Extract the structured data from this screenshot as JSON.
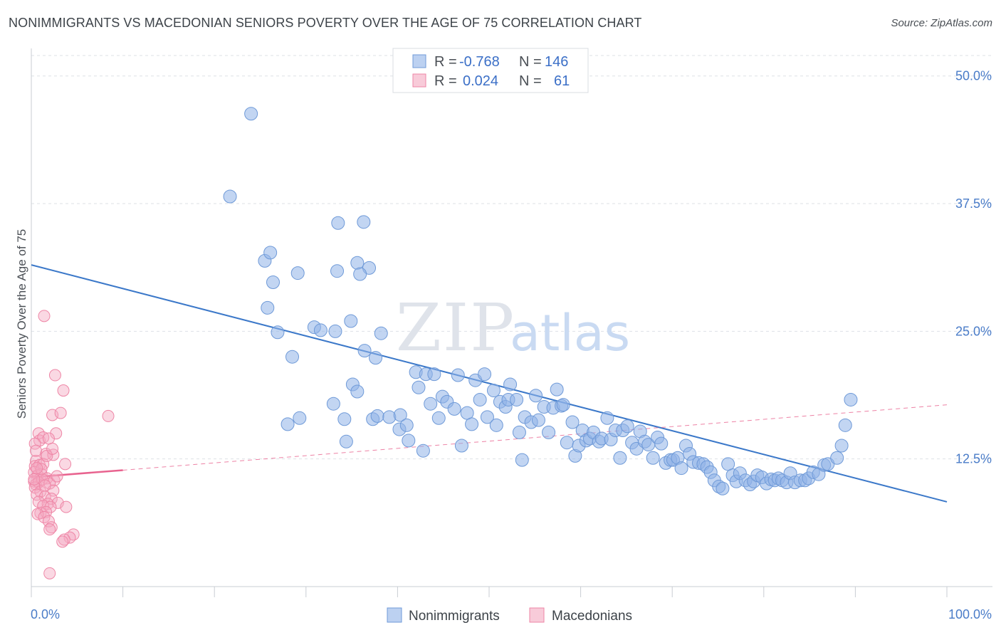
{
  "header": {
    "title": "NONIMMIGRANTS VS MACEDONIAN SENIORS POVERTY OVER THE AGE OF 75 CORRELATION CHART",
    "source": "Source: ZipAtlas.com"
  },
  "watermark": {
    "zip": "ZIP",
    "atlas": "atlas"
  },
  "legend": {
    "r_label": "R =",
    "n_label": "N =",
    "rows": [
      {
        "r": "-0.768",
        "n": "146",
        "color": "#8fb3e8"
      },
      {
        "r": "0.024",
        "n": "61",
        "color": "#f4a9c0"
      }
    ]
  },
  "bottom_legend": [
    "Nonimmigrants",
    "Macedonians"
  ],
  "chart_data": {
    "type": "scatter",
    "title": "NONIMMIGRANTS VS MACEDONIAN SENIORS POVERTY OVER THE AGE OF 75 CORRELATION CHART",
    "ylabel": "Seniors Poverty Over the Age of 75",
    "xlabel": "",
    "xlim": [
      0,
      100
    ],
    "ylim": [
      0,
      52
    ],
    "x_ticks": [
      "0.0%",
      "100.0%"
    ],
    "y_ticks": [
      {
        "value": 12.5,
        "label": "12.5%"
      },
      {
        "value": 25.0,
        "label": "25.0%"
      },
      {
        "value": 37.5,
        "label": "37.5%"
      },
      {
        "value": 50.0,
        "label": "50.0%"
      }
    ],
    "grid": true,
    "series": [
      {
        "name": "Nonimmigrants",
        "color": "#8fb3e8",
        "stroke": "#6f9ad8",
        "trend": {
          "x": [
            0,
            100
          ],
          "y": [
            31.5,
            8.3
          ],
          "color": "#3b78c9",
          "style": "solid"
        },
        "points": [
          [
            24,
            46.3
          ],
          [
            21.7,
            38.2
          ],
          [
            25.5,
            31.9
          ],
          [
            26.1,
            32.7
          ],
          [
            26.4,
            29.8
          ],
          [
            29.1,
            30.7
          ],
          [
            25.8,
            27.3
          ],
          [
            33.5,
            35.6
          ],
          [
            36.3,
            35.7
          ],
          [
            35.6,
            31.7
          ],
          [
            33.4,
            30.9
          ],
          [
            36.9,
            31.2
          ],
          [
            35.9,
            30.6
          ],
          [
            26.9,
            24.9
          ],
          [
            28.5,
            22.5
          ],
          [
            30.9,
            25.4
          ],
          [
            31.6,
            25.1
          ],
          [
            33.2,
            25.0
          ],
          [
            34.9,
            26.0
          ],
          [
            38.2,
            24.8
          ],
          [
            36.4,
            23.1
          ],
          [
            37.6,
            22.4
          ],
          [
            28.0,
            15.9
          ],
          [
            29.3,
            16.5
          ],
          [
            33.0,
            17.9
          ],
          [
            34.2,
            16.4
          ],
          [
            34.4,
            14.2
          ],
          [
            35.1,
            19.8
          ],
          [
            35.6,
            19.1
          ],
          [
            37.3,
            16.4
          ],
          [
            37.8,
            16.7
          ],
          [
            39.1,
            16.6
          ],
          [
            40.3,
            16.8
          ],
          [
            40.2,
            15.4
          ],
          [
            41.0,
            15.8
          ],
          [
            41.2,
            14.3
          ],
          [
            42.0,
            21.0
          ],
          [
            42.3,
            19.5
          ],
          [
            42.8,
            13.3
          ],
          [
            43.1,
            20.8
          ],
          [
            44.0,
            20.8
          ],
          [
            43.6,
            17.9
          ],
          [
            44.5,
            16.5
          ],
          [
            44.9,
            18.6
          ],
          [
            45.4,
            18.1
          ],
          [
            46.2,
            17.4
          ],
          [
            46.6,
            20.7
          ],
          [
            47.0,
            13.8
          ],
          [
            47.6,
            17.0
          ],
          [
            48.1,
            15.9
          ],
          [
            48.5,
            20.2
          ],
          [
            49.0,
            18.3
          ],
          [
            49.5,
            20.8
          ],
          [
            49.8,
            16.6
          ],
          [
            50.5,
            19.2
          ],
          [
            50.8,
            15.8
          ],
          [
            51.2,
            18.1
          ],
          [
            51.8,
            17.6
          ],
          [
            52.1,
            18.3
          ],
          [
            52.3,
            19.8
          ],
          [
            53.0,
            18.3
          ],
          [
            53.3,
            15.1
          ],
          [
            53.6,
            12.4
          ],
          [
            53.9,
            16.6
          ],
          [
            54.6,
            16.1
          ],
          [
            55.1,
            18.7
          ],
          [
            55.4,
            16.3
          ],
          [
            56.0,
            17.6
          ],
          [
            56.5,
            15.1
          ],
          [
            57.0,
            17.5
          ],
          [
            57.4,
            19.3
          ],
          [
            57.9,
            17.7
          ],
          [
            58.1,
            17.8
          ],
          [
            58.5,
            14.1
          ],
          [
            59.1,
            16.1
          ],
          [
            59.4,
            12.8
          ],
          [
            59.8,
            13.8
          ],
          [
            60.2,
            15.3
          ],
          [
            60.6,
            14.3
          ],
          [
            61.0,
            14.5
          ],
          [
            61.4,
            15.1
          ],
          [
            62.0,
            14.2
          ],
          [
            62.3,
            14.5
          ],
          [
            62.9,
            16.5
          ],
          [
            63.3,
            14.4
          ],
          [
            63.8,
            15.3
          ],
          [
            64.3,
            12.6
          ],
          [
            64.6,
            15.3
          ],
          [
            65.1,
            15.7
          ],
          [
            65.6,
            14.1
          ],
          [
            66.1,
            13.5
          ],
          [
            66.5,
            15.2
          ],
          [
            67.0,
            14.2
          ],
          [
            67.4,
            13.9
          ],
          [
            67.9,
            12.6
          ],
          [
            68.4,
            14.6
          ],
          [
            68.8,
            14.0
          ],
          [
            69.3,
            12.1
          ],
          [
            69.8,
            12.4
          ],
          [
            70.1,
            12.4
          ],
          [
            70.6,
            12.6
          ],
          [
            71.0,
            11.6
          ],
          [
            71.5,
            13.8
          ],
          [
            71.9,
            13.0
          ],
          [
            72.3,
            12.2
          ],
          [
            72.9,
            12.1
          ],
          [
            73.4,
            12.0
          ],
          [
            73.8,
            11.7
          ],
          [
            74.2,
            11.2
          ],
          [
            74.6,
            10.4
          ],
          [
            75.1,
            9.8
          ],
          [
            75.5,
            9.6
          ],
          [
            76.1,
            12.0
          ],
          [
            76.6,
            10.9
          ],
          [
            77.0,
            10.3
          ],
          [
            77.4,
            11.1
          ],
          [
            78.0,
            10.4
          ],
          [
            78.5,
            10.0
          ],
          [
            78.9,
            10.3
          ],
          [
            79.3,
            10.9
          ],
          [
            79.8,
            10.7
          ],
          [
            80.3,
            10.1
          ],
          [
            80.8,
            10.5
          ],
          [
            81.2,
            10.4
          ],
          [
            81.6,
            10.6
          ],
          [
            82.0,
            10.4
          ],
          [
            82.5,
            10.2
          ],
          [
            82.9,
            11.1
          ],
          [
            83.4,
            10.2
          ],
          [
            84.0,
            10.4
          ],
          [
            84.5,
            10.4
          ],
          [
            84.9,
            10.6
          ],
          [
            85.4,
            11.2
          ],
          [
            86.0,
            11.0
          ],
          [
            86.6,
            11.9
          ],
          [
            87.0,
            12.0
          ],
          [
            88.0,
            12.6
          ],
          [
            88.5,
            13.8
          ],
          [
            88.9,
            15.8
          ],
          [
            89.5,
            18.3
          ]
        ]
      },
      {
        "name": "Macedonians",
        "color": "#f4a9c0",
        "stroke": "#ee86a6",
        "trend": {
          "x": [
            0,
            10
          ],
          "y": [
            10.7,
            11.4
          ],
          "x2": [
            10,
            100
          ],
          "y2": [
            11.4,
            17.8
          ],
          "color": "#e8638f"
        },
        "points": [
          [
            1.4,
            26.5
          ],
          [
            2.6,
            20.7
          ],
          [
            3.5,
            19.2
          ],
          [
            2.3,
            16.8
          ],
          [
            3.2,
            17.0
          ],
          [
            8.4,
            16.7
          ],
          [
            0.8,
            15.0
          ],
          [
            2.7,
            15.0
          ],
          [
            0.9,
            14.3
          ],
          [
            1.3,
            14.6
          ],
          [
            0.4,
            14.0
          ],
          [
            1.9,
            14.5
          ],
          [
            1.6,
            13.0
          ],
          [
            2.4,
            12.9
          ],
          [
            0.5,
            12.3
          ],
          [
            3.7,
            12.0
          ],
          [
            0.4,
            11.8
          ],
          [
            0.9,
            11.9
          ],
          [
            1.3,
            12.0
          ],
          [
            0.3,
            11.2
          ],
          [
            1.1,
            11.0
          ],
          [
            0.7,
            10.9
          ],
          [
            1.7,
            10.6
          ],
          [
            2.5,
            10.4
          ],
          [
            0.3,
            10.3
          ],
          [
            0.5,
            10.0
          ],
          [
            0.8,
            10.2
          ],
          [
            1.2,
            10.5
          ],
          [
            2.0,
            10.1
          ],
          [
            0.4,
            9.7
          ],
          [
            1.0,
            9.3
          ],
          [
            2.4,
            9.4
          ],
          [
            0.6,
            9.0
          ],
          [
            1.5,
            8.8
          ],
          [
            2.2,
            8.6
          ],
          [
            0.8,
            8.3
          ],
          [
            1.8,
            8.1
          ],
          [
            2.9,
            8.2
          ],
          [
            1.3,
            7.9
          ],
          [
            2.1,
            7.8
          ],
          [
            3.8,
            7.8
          ],
          [
            1.0,
            7.2
          ],
          [
            1.6,
            7.3
          ],
          [
            0.7,
            7.1
          ],
          [
            1.4,
            6.8
          ],
          [
            1.9,
            6.4
          ],
          [
            2.2,
            5.8
          ],
          [
            2.0,
            5.6
          ],
          [
            4.6,
            5.1
          ],
          [
            4.2,
            4.8
          ],
          [
            3.6,
            4.6
          ],
          [
            3.4,
            4.4
          ],
          [
            2.0,
            1.3
          ],
          [
            0.3,
            10.5
          ],
          [
            0.5,
            13.3
          ],
          [
            1.7,
            12.8
          ],
          [
            1.1,
            11.5
          ],
          [
            2.8,
            10.8
          ],
          [
            0.6,
            11.6
          ],
          [
            1.5,
            9.9
          ],
          [
            2.3,
            13.5
          ]
        ]
      }
    ]
  }
}
